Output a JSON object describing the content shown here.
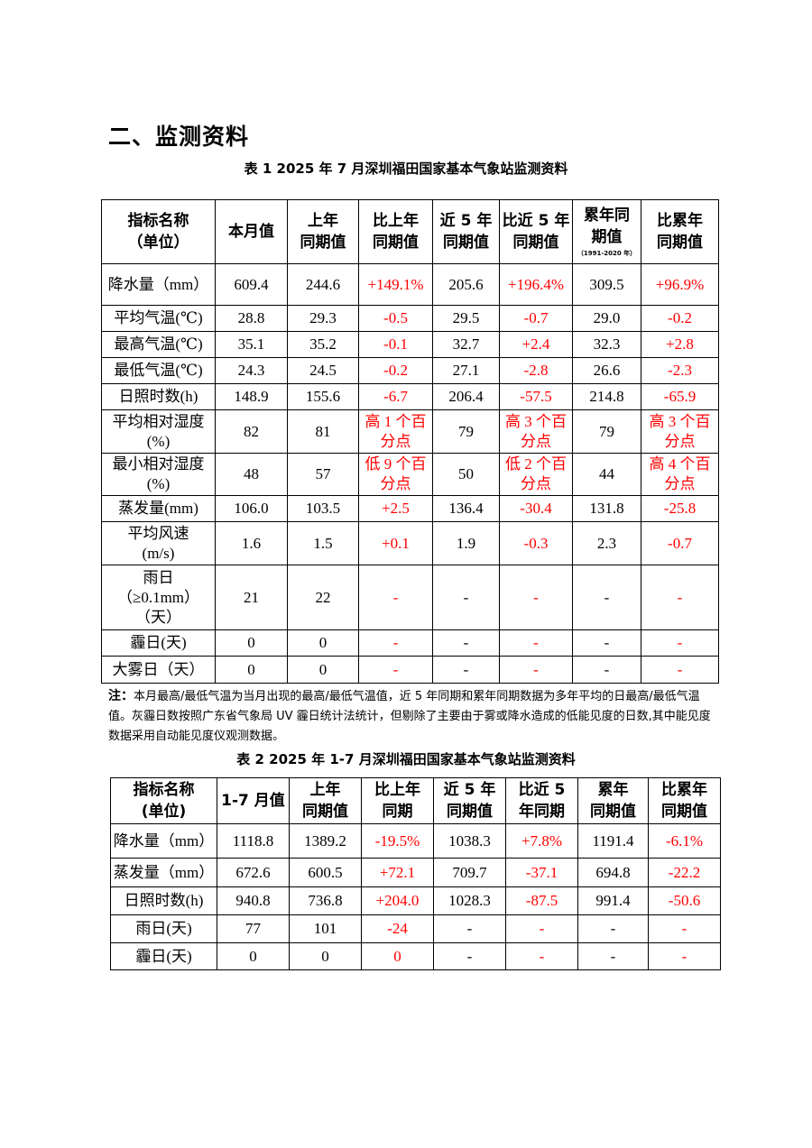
{
  "section_title": "二、监测资料",
  "table1": {
    "caption": "表 1   2025 年 7 月深圳福田国家基本气象站监测资料",
    "headers": [
      "指标名称\n（单位）",
      "本月值",
      "上年\n同期值",
      "比上年\n同期值",
      "近 5 年\n同期值",
      "比近 5 年\n同期值",
      "累年同\n期值",
      "比累年\n同期值"
    ],
    "header_sub": "（1991-2020 年）",
    "rows": [
      [
        "降水量（mm）",
        "609.4",
        "244.6",
        "+149.1%",
        "205.6",
        "+196.4%",
        "309.5",
        "+96.9%"
      ],
      [
        "平均气温(℃)",
        "28.8",
        "29.3",
        "-0.5",
        "29.5",
        "-0.7",
        "29.0",
        "-0.2"
      ],
      [
        "最高气温(℃)",
        "35.1",
        "35.2",
        "-0.1",
        "32.7",
        "+2.4",
        "32.3",
        "+2.8"
      ],
      [
        "最低气温(℃)",
        "24.3",
        "24.5",
        "-0.2",
        "27.1",
        "-2.8",
        "26.6",
        "-2.3"
      ],
      [
        "日照时数(h)",
        "148.9",
        "155.6",
        "-6.7",
        "206.4",
        "-57.5",
        "214.8",
        "-65.9"
      ],
      [
        "平均相对湿度\n(%)",
        "82",
        "81",
        "高 1 个百\n分点",
        "79",
        "高 3 个百\n分点",
        "79",
        "高 3 个百\n分点"
      ],
      [
        "最小相对湿度\n(%)",
        "48",
        "57",
        "低 9 个百\n分点",
        "50",
        "低 2 个百\n分点",
        "44",
        "高 4 个百\n分点"
      ],
      [
        "蒸发量(mm)",
        "106.0",
        "103.5",
        "+2.5",
        "136.4",
        "-30.4",
        "131.8",
        "-25.8"
      ],
      [
        "平均风速\n(m/s)",
        "1.6",
        "1.5",
        "+0.1",
        "1.9",
        "-0.3",
        "2.3",
        "-0.7"
      ],
      [
        "雨日\n（≥0.1mm）\n（天）",
        "21",
        "22",
        "-",
        "-",
        "-",
        "-",
        "-"
      ],
      [
        "霾日(天)",
        "0",
        "0",
        "-",
        "-",
        "-",
        "-",
        "-"
      ],
      [
        "大雾日（天）",
        "0",
        "0",
        "-",
        "-",
        "-",
        "-",
        "-"
      ]
    ]
  },
  "note": {
    "label": "注：",
    "text": "本月最高/最低气温为当月出现的最高/最低气温值，近 5 年同期和累年同期数据为多年平均的日最高/最低气温值。灰霾日数按照广东省气象局 UV 霾日统计法统计，但剔除了主要由于雾或降水造成的低能见度的日数,其中能见度数据采用自动能见度仪观测数据。"
  },
  "table2": {
    "caption": "表 2   2025 年 1-7 月深圳福田国家基本气象站监测资料",
    "headers": [
      "指标名称\n(单位)",
      "1-7 月值",
      "上年\n同期值",
      "比上年\n同期",
      "近 5 年\n同期值",
      "比近 5\n年同期",
      "累年\n同期值",
      "比累年\n同期值"
    ],
    "rows": [
      [
        "降水量（mm）",
        "1118.8",
        "1389.2",
        "-19.5%",
        "1038.3",
        "+7.8%",
        "1191.4",
        "-6.1%"
      ],
      [
        "蒸发量（mm）",
        "672.6",
        "600.5",
        "+72.1",
        "709.7",
        "-37.1",
        "694.8",
        "-22.2"
      ],
      [
        "日照时数(h)",
        "940.8",
        "736.8",
        "+204.0",
        "1028.3",
        "-87.5",
        "991.4",
        "-50.6"
      ],
      [
        "雨日(天)",
        "77",
        "101",
        "-24",
        "-",
        "-",
        "-",
        "-"
      ],
      [
        "霾日(天)",
        "0",
        "0",
        "0",
        "-",
        "-",
        "-",
        "-"
      ]
    ]
  },
  "colors": {
    "text": "#000000",
    "comparison": "#ff0000"
  }
}
